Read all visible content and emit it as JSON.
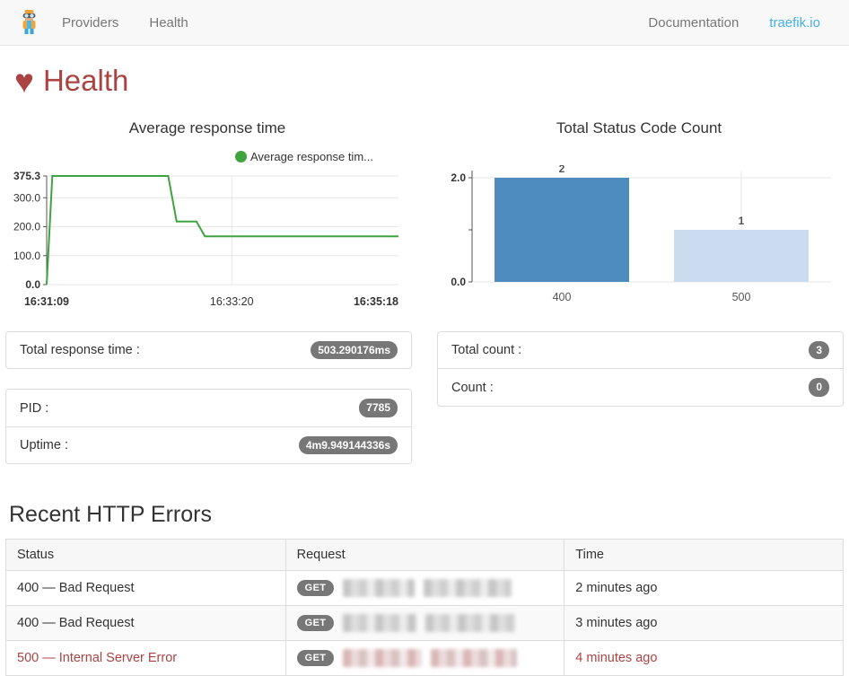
{
  "navbar": {
    "brand_icon": "traefik-mascot",
    "left_items": [
      "Providers",
      "Health"
    ],
    "right_items": [
      "Documentation",
      "traefik.io"
    ],
    "link_color": "#45b1e8"
  },
  "page": {
    "heart_icon": "♥",
    "title": "Health",
    "title_color": "#a94442"
  },
  "chart_data": [
    {
      "type": "line",
      "title": "Average response time",
      "legend_label": "Average response tim...",
      "legend_position": "top-right",
      "grid": true,
      "xlabel": "",
      "ylabel": "",
      "xmax": 249,
      "ymax": 375.3,
      "xticks": [
        {
          "t": 0,
          "label": "16:31:09",
          "bold": true,
          "anchor": "middle"
        },
        {
          "t": 131,
          "label": "16:33:20",
          "bold": false,
          "anchor": "middle"
        },
        {
          "t": 249,
          "label": "16:35:18",
          "bold": true,
          "anchor": "end"
        }
      ],
      "xgrid": [
        131
      ],
      "ygrid": [
        {
          "v": 0,
          "label": "0.0",
          "bold": true
        },
        {
          "v": 100,
          "label": "100.0",
          "bold": false
        },
        {
          "v": 200,
          "label": "200.0",
          "bold": false
        },
        {
          "v": 300,
          "label": "300.0",
          "bold": false
        },
        {
          "v": 375.3,
          "label": "375.3",
          "bold": true
        }
      ],
      "series": [
        {
          "name": "Average response time",
          "color": "#3fa33f",
          "points": [
            [
              0,
              0
            ],
            [
              4,
              375.3
            ],
            [
              86,
              375.3
            ],
            [
              92,
              218
            ],
            [
              106,
              218
            ],
            [
              112,
              167
            ],
            [
              249,
              167
            ]
          ]
        }
      ]
    },
    {
      "type": "bar",
      "title": "Total Status Code Count",
      "categories": [
        "400",
        "500"
      ],
      "values": [
        2,
        1
      ],
      "bar_colors": [
        "#4e8cbf",
        "#cbdcf0"
      ],
      "data_labels": [
        "2",
        "1"
      ],
      "ylim": [
        0,
        2
      ],
      "yticks": [
        {
          "v": 0,
          "label": "0.0",
          "bold": true
        },
        {
          "v": 1,
          "label": "",
          "bold": false
        },
        {
          "v": 2,
          "label": "2.0",
          "bold": true
        }
      ],
      "grid": true
    }
  ],
  "panels": {
    "total_response_time": {
      "label": "Total response time :",
      "value": "503.290176ms"
    },
    "pid": {
      "label": "PID :",
      "value": "7785"
    },
    "uptime": {
      "label": "Uptime :",
      "value": "4m9.949144336s"
    },
    "total_count": {
      "label": "Total count :",
      "value": "3"
    },
    "count": {
      "label": "Count :",
      "value": "0"
    }
  },
  "errors_section": {
    "title": "Recent HTTP Errors",
    "table": {
      "headers": [
        "Status",
        "Request",
        "Time"
      ],
      "rows": [
        {
          "status": "400 — Bad Request",
          "method": "GET",
          "request_redacted": true,
          "time": "2 minutes ago",
          "severity": "normal"
        },
        {
          "status": "400 — Bad Request",
          "method": "GET",
          "request_redacted": true,
          "time": "3 minutes ago",
          "severity": "normal"
        },
        {
          "status": "500 — Internal Server Error",
          "method": "GET",
          "request_redacted": true,
          "time": "4 minutes ago",
          "severity": "danger"
        }
      ]
    }
  }
}
